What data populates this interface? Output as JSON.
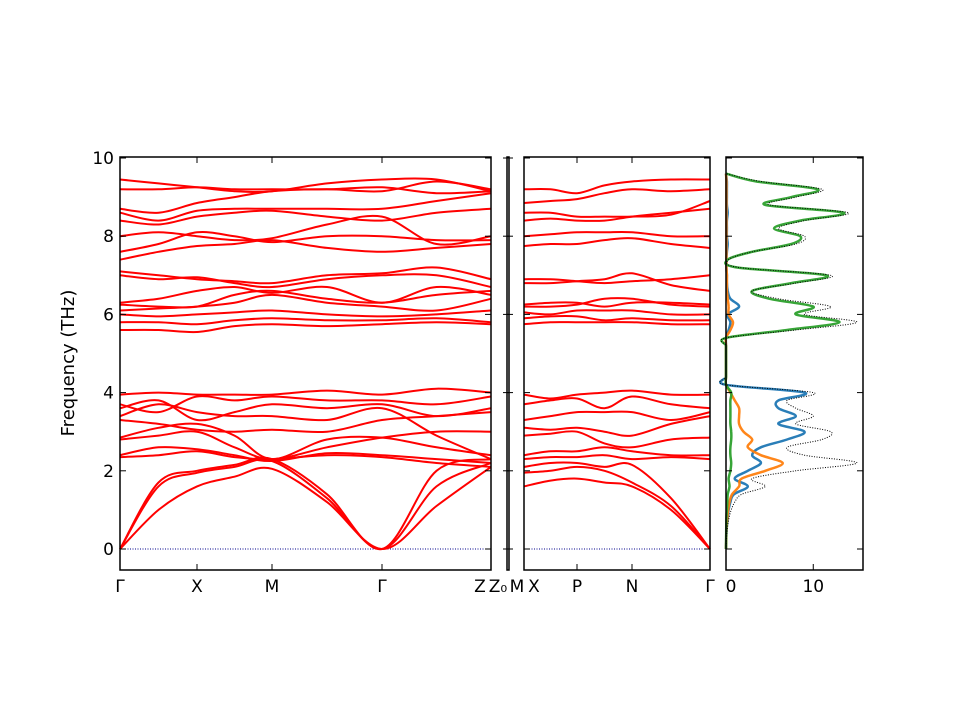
{
  "chart_data": {
    "type": "line",
    "ylabel": "Frequency (THz)",
    "ylim": [
      -0.55,
      10
    ],
    "yticks": [
      "0",
      "2",
      "4",
      "6",
      "8",
      "10"
    ],
    "band_color": "#ff0000",
    "zero_line_color": "#00008b",
    "panels": [
      {
        "kpoints": [
          "Γ",
          "X",
          "M",
          "Γ",
          "Z"
        ],
        "bands": [
          [
            0,
            1.0,
            1.6,
            1.85,
            2.05,
            1.2,
            0,
            1.1,
            2.1
          ],
          [
            0,
            1.6,
            1.95,
            2.1,
            2.25,
            1.3,
            0,
            1.6,
            2.2
          ],
          [
            0,
            1.7,
            2.0,
            2.15,
            2.3,
            1.4,
            0,
            2.0,
            2.3
          ],
          [
            2.35,
            2.4,
            2.5,
            2.35,
            2.3,
            2.4,
            2.35,
            2.2,
            2.1
          ],
          [
            2.4,
            2.6,
            2.55,
            2.4,
            2.25,
            2.45,
            2.4,
            2.3,
            2.2
          ],
          [
            2.8,
            2.9,
            3.0,
            2.6,
            2.3,
            2.6,
            2.85,
            3.0,
            3.0
          ],
          [
            2.85,
            3.1,
            3.2,
            2.9,
            2.3,
            2.8,
            2.85,
            2.6,
            2.4
          ],
          [
            3.3,
            3.2,
            3.05,
            3.0,
            3.05,
            3.0,
            3.3,
            3.4,
            3.5
          ],
          [
            3.4,
            3.7,
            3.5,
            3.4,
            3.4,
            3.3,
            3.6,
            2.9,
            2.3
          ],
          [
            3.6,
            3.8,
            3.3,
            3.5,
            3.7,
            3.6,
            3.7,
            3.4,
            3.6
          ],
          [
            3.7,
            3.5,
            3.9,
            3.8,
            3.9,
            3.8,
            3.8,
            3.7,
            3.9
          ],
          [
            3.95,
            4.0,
            3.95,
            3.95,
            3.95,
            4.05,
            3.95,
            4.1,
            4.0
          ],
          [
            5.6,
            5.6,
            5.55,
            5.7,
            5.75,
            5.7,
            5.75,
            5.8,
            5.75
          ],
          [
            5.8,
            5.8,
            5.75,
            5.85,
            5.9,
            5.85,
            5.85,
            5.9,
            5.8
          ],
          [
            6.0,
            5.95,
            6.0,
            6.05,
            6.1,
            6.0,
            5.95,
            6.0,
            6.1
          ],
          [
            6.1,
            6.15,
            6.2,
            6.3,
            6.5,
            6.3,
            6.2,
            6.1,
            6.4
          ],
          [
            6.25,
            6.2,
            6.2,
            6.5,
            6.6,
            6.4,
            6.3,
            6.5,
            6.6
          ],
          [
            6.3,
            6.4,
            6.6,
            6.7,
            6.55,
            6.7,
            6.3,
            6.7,
            6.5
          ],
          [
            7.0,
            6.9,
            6.95,
            6.8,
            6.7,
            6.9,
            7.0,
            7.0,
            6.7
          ],
          [
            7.1,
            7.0,
            6.9,
            6.85,
            6.8,
            7.0,
            7.05,
            7.2,
            6.9
          ],
          [
            7.4,
            7.6,
            7.75,
            7.8,
            7.9,
            7.7,
            7.6,
            7.7,
            7.8
          ],
          [
            7.6,
            7.8,
            8.1,
            8.0,
            7.85,
            8.0,
            8.0,
            7.9,
            7.9
          ],
          [
            8.0,
            8.1,
            8.0,
            7.9,
            7.95,
            8.3,
            8.5,
            7.8,
            8.0
          ],
          [
            8.4,
            8.3,
            8.5,
            8.6,
            8.65,
            8.5,
            8.4,
            8.6,
            8.7
          ],
          [
            8.6,
            8.4,
            8.65,
            8.7,
            8.7,
            8.7,
            8.7,
            8.9,
            9.1
          ],
          [
            8.7,
            8.6,
            8.85,
            9.0,
            9.15,
            9.2,
            9.15,
            9.4,
            9.2
          ],
          [
            9.2,
            9.2,
            9.25,
            9.2,
            9.2,
            9.2,
            9.25,
            9.1,
            9.15
          ],
          [
            9.45,
            9.35,
            9.25,
            9.15,
            9.15,
            9.35,
            9.45,
            9.45,
            9.15
          ]
        ]
      },
      {
        "kpoints": [
          "Z₀",
          "M"
        ],
        "bands": []
      },
      {
        "kpoints": [
          "X",
          "P",
          "N",
          "Γ"
        ],
        "bands": [
          [
            1.6,
            1.75,
            1.8,
            1.7,
            1.6,
            1.0,
            0
          ],
          [
            1.95,
            2.0,
            2.1,
            2.0,
            1.7,
            1.1,
            0
          ],
          [
            2.1,
            2.2,
            2.2,
            2.1,
            2.15,
            1.3,
            0
          ],
          [
            2.3,
            2.35,
            2.35,
            2.4,
            2.3,
            2.35,
            2.3
          ],
          [
            2.4,
            2.5,
            2.5,
            2.6,
            2.5,
            2.4,
            2.4
          ],
          [
            2.9,
            2.95,
            3.0,
            2.7,
            2.6,
            2.8,
            2.85
          ],
          [
            3.1,
            3.05,
            3.1,
            3.0,
            2.9,
            3.2,
            3.4
          ],
          [
            3.3,
            3.4,
            3.5,
            3.5,
            3.5,
            3.3,
            3.5
          ],
          [
            3.7,
            3.8,
            3.85,
            3.6,
            3.9,
            3.7,
            3.6
          ],
          [
            3.95,
            3.85,
            3.95,
            4.0,
            4.05,
            3.95,
            3.95
          ],
          [
            5.75,
            5.8,
            5.8,
            5.8,
            5.8,
            5.75,
            5.75
          ],
          [
            5.9,
            5.95,
            5.95,
            5.85,
            5.9,
            5.85,
            5.85
          ],
          [
            6.05,
            6.0,
            6.1,
            6.1,
            6.1,
            6.0,
            6.0
          ],
          [
            6.2,
            6.2,
            6.25,
            6.4,
            6.4,
            6.25,
            6.2
          ],
          [
            6.25,
            6.3,
            6.3,
            6.2,
            6.3,
            6.3,
            6.25
          ],
          [
            6.8,
            6.8,
            6.85,
            6.9,
            7.05,
            6.75,
            6.6
          ],
          [
            6.9,
            6.9,
            6.85,
            6.8,
            6.85,
            6.9,
            7.0
          ],
          [
            7.75,
            7.8,
            7.8,
            7.9,
            7.95,
            7.8,
            7.7
          ],
          [
            8.0,
            8.05,
            8.1,
            8.1,
            8.1,
            8.0,
            8.0
          ],
          [
            8.4,
            8.45,
            8.4,
            8.4,
            8.5,
            8.6,
            8.7
          ],
          [
            8.6,
            8.6,
            8.5,
            8.5,
            8.5,
            8.55,
            8.9
          ],
          [
            8.85,
            8.9,
            8.95,
            9.1,
            9.2,
            9.15,
            9.2
          ],
          [
            9.2,
            9.2,
            9.1,
            9.3,
            9.4,
            9.45,
            9.45
          ]
        ]
      }
    ],
    "dos": {
      "xlim": [
        0,
        15.7
      ],
      "xticks": [
        "0",
        "10"
      ],
      "frequency_thz": [
        0,
        0.2,
        0.4,
        0.6,
        0.8,
        1.0,
        1.2,
        1.4,
        1.6,
        1.8,
        2.0,
        2.2,
        2.4,
        2.6,
        2.8,
        3.0,
        3.2,
        3.4,
        3.6,
        3.8,
        4.0,
        4.2,
        4.4,
        4.6,
        4.8,
        5.0,
        5.2,
        5.4,
        5.6,
        5.8,
        6.0,
        6.2,
        6.4,
        6.6,
        6.8,
        7.0,
        7.2,
        7.4,
        7.6,
        7.8,
        8.0,
        8.2,
        8.4,
        8.6,
        8.8,
        9.0,
        9.2,
        9.4,
        9.6
      ],
      "series": [
        {
          "color": "#1f77b4",
          "style": "solid",
          "values": [
            0,
            0.02,
            0.05,
            0.1,
            0.2,
            0.3,
            0.5,
            0.9,
            2.5,
            1,
            2.5,
            4,
            3,
            4,
            7,
            9,
            6,
            8,
            6,
            6,
            9,
            0,
            0,
            0,
            0,
            0,
            0,
            0,
            0.3,
            0.5,
            0.2,
            1.5,
            0.5,
            0.2,
            0.1,
            0.1,
            0.05,
            0.05,
            0.1,
            0.2,
            0.1,
            0.1,
            0.1,
            0.2,
            0.1,
            0.1,
            0.1,
            0.1,
            0
          ]
        },
        {
          "color": "#ff7f0e",
          "style": "solid",
          "values": [
            0,
            0.02,
            0.04,
            0.08,
            0.15,
            0.25,
            0.4,
            0.7,
            1.5,
            1.8,
            4.5,
            6.5,
            4,
            2.5,
            3,
            2,
            1.5,
            1.5,
            1.5,
            1,
            0.5,
            0,
            0,
            0,
            0,
            0,
            0,
            0,
            0.5,
            0.8,
            0.3,
            0.3,
            0.2,
            0.1,
            0.1,
            0.1,
            0.05,
            0.05,
            0.05,
            0.05,
            0.05,
            0.05,
            0.05,
            0.05,
            0.05,
            0.05,
            0.05,
            0.05,
            0
          ]
        },
        {
          "color": "#2ca02c",
          "style": "solid",
          "values": [
            0,
            0.01,
            0.02,
            0.03,
            0.05,
            0.1,
            0.15,
            0.2,
            0.4,
            0.3,
            0.5,
            0.6,
            0.5,
            0.5,
            0.6,
            0.6,
            0.5,
            0.5,
            0.5,
            0.5,
            0.6,
            0,
            0,
            0,
            0,
            0,
            0,
            0,
            7,
            13,
            8,
            10,
            5,
            3,
            7.5,
            11.5,
            1.3,
            0.2,
            3,
            7.5,
            8.5,
            5.5,
            8.5,
            13.5,
            4.5,
            7.5,
            10.5,
            3.5,
            0
          ]
        },
        {
          "color": "#000000",
          "style": "dotted",
          "values": [
            0,
            0.05,
            0.1,
            0.2,
            0.35,
            0.6,
            1.0,
            1.8,
            4.5,
            3,
            8,
            15,
            9,
            7,
            11,
            12,
            8,
            10,
            8,
            7,
            10,
            0,
            0,
            0,
            0,
            0,
            0,
            0,
            8,
            15,
            9,
            12,
            6,
            3,
            8,
            12,
            1.5,
            0.3,
            3,
            8,
            9,
            6,
            9,
            14,
            5,
            8,
            11,
            4,
            0
          ]
        }
      ]
    }
  }
}
